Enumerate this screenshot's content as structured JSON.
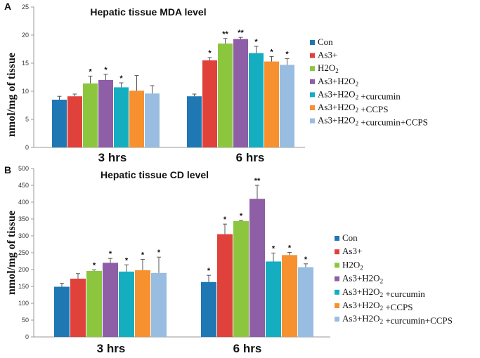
{
  "colors": [
    "#1f77b4",
    "#e0413a",
    "#8cc63f",
    "#8e5ea6",
    "#14aec0",
    "#f7902e",
    "#98bde0"
  ],
  "chart_data": [
    {
      "panel": "A",
      "type": "bar",
      "title": "Hepatic tissue MDA level",
      "ylabel": "nmol/mg of tissue",
      "ylim": [
        0,
        25
      ],
      "yticks": [
        "0",
        "5",
        "10",
        "15",
        "20",
        "25"
      ],
      "categories": [
        "3 hrs",
        "6 hrs"
      ],
      "legend": [
        "Con",
        "As3+",
        "H2O2",
        "As3+H2O2",
        "As3+H2O2 +curcumin",
        "As3+H2O2 +CCPS",
        "As3+H2O2 +curcumin+CCPS"
      ],
      "series": [
        {
          "name": "Con",
          "values": [
            8.5,
            9.1
          ],
          "errors": [
            0.6,
            0.4
          ],
          "sig": [
            "",
            ""
          ]
        },
        {
          "name": "As3+",
          "values": [
            9.1,
            15.5
          ],
          "errors": [
            0.4,
            0.5
          ],
          "sig": [
            "",
            "*"
          ]
        },
        {
          "name": "H2O2",
          "values": [
            11.4,
            18.5
          ],
          "errors": [
            1.3,
            0.9
          ],
          "sig": [
            "*",
            "**"
          ]
        },
        {
          "name": "As3+H2O2",
          "values": [
            12.0,
            19.3
          ],
          "errors": [
            1.0,
            0.3
          ],
          "sig": [
            "*",
            "**"
          ]
        },
        {
          "name": "As3+H2O2 +curcumin",
          "values": [
            10.7,
            16.8
          ],
          "errors": [
            0.8,
            1.2
          ],
          "sig": [
            "*",
            "*"
          ]
        },
        {
          "name": "As3+H2O2 +CCPS",
          "values": [
            10.1,
            15.3
          ],
          "errors": [
            2.7,
            0.9
          ],
          "sig": [
            "",
            "*"
          ]
        },
        {
          "name": "As3+H2O2 +curcumin+CCPS",
          "values": [
            9.6,
            14.7
          ],
          "errors": [
            1.4,
            1.1
          ],
          "sig": [
            "",
            "*"
          ]
        }
      ]
    },
    {
      "panel": "B",
      "type": "bar",
      "title": "Hepatic tissue CD level",
      "ylabel": "nmol/mg of tissue",
      "ylim": [
        0,
        500
      ],
      "yticks": [
        "0",
        "50",
        "100",
        "150",
        "200",
        "250",
        "300",
        "350",
        "400",
        "450",
        "500"
      ],
      "categories": [
        "3 hrs",
        "6 hrs"
      ],
      "legend": [
        "Con",
        "As3+",
        "H2O2",
        "As3+H2O2",
        "As3+H2O2 +curcumin",
        "As3+H2O2 +CCPS",
        "As3+H2O2 +curcumin+CCPS"
      ],
      "series": [
        {
          "name": "Con",
          "values": [
            149,
            163
          ],
          "errors": [
            10,
            20
          ],
          "sig": [
            "",
            "*"
          ]
        },
        {
          "name": "As3+",
          "values": [
            173,
            305
          ],
          "errors": [
            15,
            30
          ],
          "sig": [
            "",
            "*"
          ]
        },
        {
          "name": "H2O2",
          "values": [
            196,
            344
          ],
          "errors": [
            3,
            2
          ],
          "sig": [
            "*",
            "*"
          ]
        },
        {
          "name": "As3+H2O2",
          "values": [
            220,
            410
          ],
          "errors": [
            13,
            40
          ],
          "sig": [
            "*",
            "**"
          ]
        },
        {
          "name": "As3+H2O2 +curcumin",
          "values": [
            194,
            224
          ],
          "errors": [
            20,
            25
          ],
          "sig": [
            "*",
            "*"
          ]
        },
        {
          "name": "As3+H2O2 +CCPS",
          "values": [
            198,
            243
          ],
          "errors": [
            32,
            8
          ],
          "sig": [
            "*",
            "*"
          ]
        },
        {
          "name": "As3+H2O2 +curcumin+CCPS",
          "values": [
            190,
            207
          ],
          "errors": [
            47,
            10
          ],
          "sig": [
            "*",
            "*"
          ]
        }
      ]
    }
  ]
}
